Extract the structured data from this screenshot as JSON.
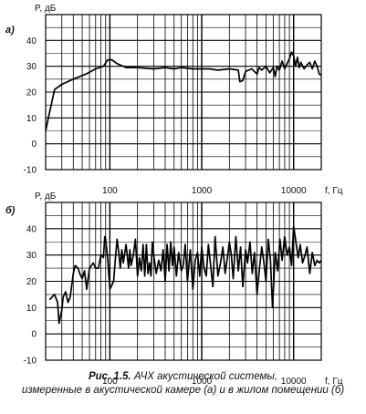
{
  "chart_data": [
    {
      "type": "line",
      "panel_label": "а)",
      "ylabel": "P, дБ",
      "xlabel": "f, Гц",
      "x_scale": "log",
      "xlim": [
        20,
        20000
      ],
      "ylim": [
        -10,
        50
      ],
      "y_ticks": [
        -10,
        0,
        10,
        20,
        30,
        40
      ],
      "x_tick_labels": [
        {
          "value": 100,
          "label": "100"
        },
        {
          "value": 1000,
          "label": "1000"
        },
        {
          "value": 10000,
          "label": "10000"
        }
      ],
      "grid": true,
      "series": [
        {
          "x": [
            20,
            22,
            25,
            30,
            40,
            55,
            70,
            85,
            95,
            105,
            120,
            150,
            200,
            300,
            400,
            500,
            600,
            800,
            1000,
            1200,
            1500,
            2000,
            2500,
            2600,
            2800,
            3000,
            3500,
            4000,
            4200,
            4500,
            5000,
            5500,
            6000,
            6300,
            6600,
            7000,
            7500,
            8000,
            8500,
            9000,
            9500,
            10000,
            10500,
            11000,
            11500,
            12000,
            13000,
            14000,
            15000,
            16000,
            17000,
            18000,
            19000,
            20000
          ],
          "y": [
            5,
            12,
            21,
            23,
            25,
            27,
            29,
            30,
            32.5,
            32.5,
            31,
            29.5,
            29.5,
            29,
            29.5,
            29,
            29.5,
            29,
            29,
            29,
            28.5,
            29,
            28.5,
            24,
            24.5,
            28,
            29,
            27,
            29.5,
            28.5,
            30,
            27.5,
            29.5,
            26,
            30,
            28.5,
            32,
            29,
            31,
            33,
            35.5,
            34,
            30,
            33.5,
            29.5,
            31.5,
            29,
            30.5,
            31.5,
            29,
            32,
            30,
            27,
            26.5
          ]
        }
      ]
    },
    {
      "type": "line",
      "panel_label": "б)",
      "ylabel": "P, дБ",
      "xlabel": "f, Гц",
      "x_scale": "log",
      "xlim": [
        20,
        20000
      ],
      "ylim": [
        -10,
        50
      ],
      "y_ticks": [
        -10,
        0,
        10,
        20,
        30,
        40
      ],
      "x_tick_labels": [
        {
          "value": 100,
          "label": "100"
        },
        {
          "value": 1000,
          "label": "1000"
        },
        {
          "value": 10000,
          "label": "10000"
        }
      ],
      "grid": true,
      "series": [
        {
          "x": [
            22,
            25,
            27,
            28,
            30,
            31,
            33,
            35,
            37,
            40,
            42,
            45,
            47,
            50,
            53,
            56,
            60,
            63,
            66,
            70,
            75,
            80,
            85,
            88,
            90,
            95,
            100,
            110,
            115,
            120,
            125,
            130,
            135,
            140,
            150,
            160,
            165,
            170,
            180,
            190,
            200,
            210,
            220,
            230,
            240,
            250,
            260,
            270,
            280,
            290,
            300,
            320,
            340,
            360,
            380,
            400,
            420,
            440,
            460,
            480,
            500,
            530,
            560,
            600,
            630,
            660,
            700,
            750,
            800,
            850,
            900,
            950,
            1000,
            1060,
            1120,
            1180,
            1250,
            1320,
            1400,
            1500,
            1600,
            1700,
            1800,
            1900,
            2000,
            2100,
            2200,
            2350,
            2500,
            2650,
            2800,
            3000,
            3150,
            3350,
            3550,
            3750,
            4000,
            4250,
            4500,
            4750,
            5000,
            5300,
            5600,
            5900,
            6300,
            6700,
            7100,
            7500,
            8000,
            8500,
            9000,
            9500,
            10000,
            10600,
            11200,
            11800,
            12500,
            13300,
            14000,
            15000,
            16000,
            17000,
            18000,
            19000,
            20000
          ],
          "y": [
            13,
            15,
            12,
            4,
            9,
            14,
            16,
            12,
            14,
            23,
            26,
            25,
            23,
            21,
            24,
            17,
            25,
            26,
            27,
            25,
            25,
            30,
            29,
            37,
            36,
            28,
            17,
            20,
            29,
            36,
            31,
            25,
            32,
            27,
            34,
            25,
            32,
            26,
            30,
            36,
            22,
            29,
            24,
            34,
            22,
            34,
            23,
            27,
            22,
            35,
            30,
            23,
            28,
            24,
            32,
            20,
            34,
            24,
            35,
            26,
            33,
            22,
            31,
            24,
            26,
            34,
            20,
            32,
            17,
            28,
            31,
            22,
            33,
            25,
            22,
            34,
            26,
            18,
            37,
            22,
            27,
            33,
            23,
            29,
            35,
            30,
            21,
            37,
            24,
            33,
            18,
            32,
            27,
            35,
            23,
            31,
            15,
            25,
            33,
            27,
            20,
            36,
            28,
            10,
            31,
            24,
            36,
            28,
            37,
            30,
            33,
            26,
            41,
            35,
            29,
            34,
            27,
            30,
            33,
            23,
            31,
            26,
            28,
            27,
            28
          ]
        }
      ]
    }
  ],
  "caption": {
    "label": "Рис. 1.5.",
    "line1": "АЧХ акустической системы,",
    "line2": "измеренные в акустической камере (а) и в жилом помещении (б)"
  }
}
